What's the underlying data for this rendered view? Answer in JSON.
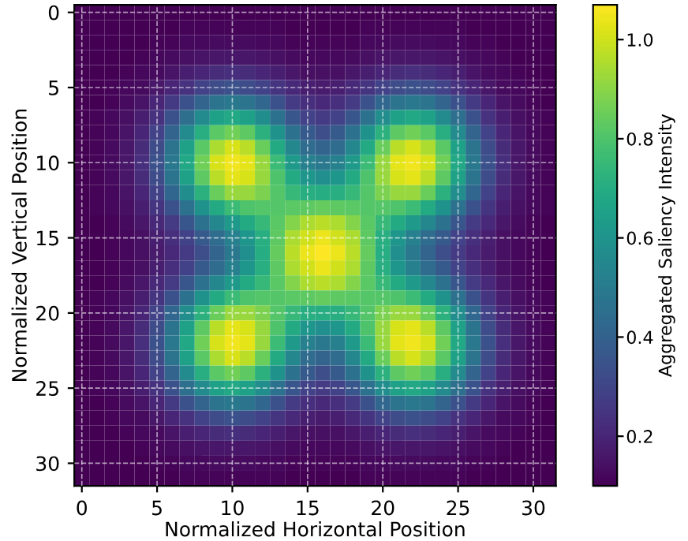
{
  "chart_data": {
    "type": "heatmap",
    "xlabel": "Normalized Horizontal Position",
    "ylabel": "Normalized Vertical Position",
    "clabel": "Aggregated Saliency Intensity",
    "xlim": [
      -0.5,
      31.5
    ],
    "ylim": [
      31.5,
      -0.5
    ],
    "xticks": [
      0,
      5,
      10,
      15,
      20,
      25,
      30
    ],
    "yticks": [
      0,
      5,
      10,
      15,
      20,
      25,
      30
    ],
    "clim": [
      0.1,
      1.07
    ],
    "cticks": [
      0.2,
      0.4,
      0.6,
      0.8,
      {
        "value": 1,
        "label": "1.0"
      }
    ],
    "grid": true,
    "cells": [
      [
        0.1,
        0.1,
        0.1,
        0.1,
        0.1,
        0.1,
        0.1,
        0.1,
        0.1,
        0.1,
        0.1,
        0.1,
        0.1,
        0.1,
        0.1,
        0.1,
        0.1,
        0.1,
        0.1,
        0.1,
        0.1,
        0.1,
        0.1,
        0.1,
        0.1,
        0.1,
        0.1,
        0.1,
        0.1,
        0.1,
        0.1,
        0.1
      ],
      [
        0.1,
        0.1,
        0.1,
        0.1,
        0.1,
        0.1,
        0.1,
        0.11,
        0.11,
        0.11,
        0.11,
        0.11,
        0.11,
        0.11,
        0.1,
        0.1,
        0.1,
        0.1,
        0.1,
        0.11,
        0.11,
        0.11,
        0.11,
        0.11,
        0.11,
        0.11,
        0.1,
        0.1,
        0.1,
        0.1,
        0.1,
        0.1
      ],
      [
        0.1,
        0.1,
        0.1,
        0.1,
        0.1,
        0.11,
        0.11,
        0.12,
        0.12,
        0.13,
        0.13,
        0.13,
        0.12,
        0.12,
        0.11,
        0.11,
        0.11,
        0.11,
        0.11,
        0.12,
        0.12,
        0.13,
        0.13,
        0.13,
        0.12,
        0.12,
        0.11,
        0.11,
        0.1,
        0.1,
        0.1,
        0.1
      ],
      [
        0.1,
        0.1,
        0.1,
        0.1,
        0.11,
        0.12,
        0.13,
        0.14,
        0.15,
        0.16,
        0.16,
        0.16,
        0.15,
        0.14,
        0.13,
        0.12,
        0.12,
        0.12,
        0.13,
        0.14,
        0.15,
        0.16,
        0.16,
        0.16,
        0.15,
        0.14,
        0.13,
        0.12,
        0.11,
        0.1,
        0.1,
        0.1
      ],
      [
        0.1,
        0.1,
        0.1,
        0.11,
        0.12,
        0.13,
        0.15,
        0.18,
        0.2,
        0.22,
        0.23,
        0.22,
        0.2,
        0.18,
        0.16,
        0.14,
        0.14,
        0.14,
        0.16,
        0.18,
        0.2,
        0.22,
        0.23,
        0.22,
        0.2,
        0.18,
        0.15,
        0.13,
        0.12,
        0.11,
        0.1,
        0.1
      ],
      [
        0.1,
        0.1,
        0.11,
        0.12,
        0.13,
        0.16,
        0.2,
        0.24,
        0.29,
        0.32,
        0.34,
        0.32,
        0.29,
        0.25,
        0.21,
        0.18,
        0.17,
        0.18,
        0.21,
        0.25,
        0.29,
        0.32,
        0.34,
        0.32,
        0.29,
        0.24,
        0.2,
        0.16,
        0.13,
        0.12,
        0.11,
        0.1
      ],
      [
        0.1,
        0.1,
        0.11,
        0.13,
        0.15,
        0.2,
        0.26,
        0.34,
        0.41,
        0.47,
        0.49,
        0.47,
        0.42,
        0.34,
        0.27,
        0.23,
        0.21,
        0.23,
        0.27,
        0.34,
        0.42,
        0.47,
        0.49,
        0.47,
        0.41,
        0.34,
        0.26,
        0.2,
        0.15,
        0.13,
        0.11,
        0.1
      ],
      [
        0.1,
        0.11,
        0.12,
        0.14,
        0.18,
        0.24,
        0.34,
        0.45,
        0.56,
        0.65,
        0.68,
        0.65,
        0.57,
        0.46,
        0.36,
        0.29,
        0.27,
        0.29,
        0.36,
        0.46,
        0.57,
        0.65,
        0.68,
        0.65,
        0.56,
        0.45,
        0.34,
        0.24,
        0.18,
        0.14,
        0.12,
        0.11
      ],
      [
        0.1,
        0.11,
        0.12,
        0.15,
        0.2,
        0.29,
        0.41,
        0.56,
        0.71,
        0.82,
        0.86,
        0.83,
        0.72,
        0.59,
        0.46,
        0.37,
        0.33,
        0.37,
        0.46,
        0.59,
        0.72,
        0.83,
        0.86,
        0.82,
        0.71,
        0.56,
        0.41,
        0.29,
        0.2,
        0.15,
        0.12,
        0.11
      ],
      [
        0.1,
        0.11,
        0.13,
        0.16,
        0.22,
        0.32,
        0.47,
        0.65,
        0.82,
        0.95,
        1.01,
        0.97,
        0.85,
        0.69,
        0.55,
        0.44,
        0.41,
        0.44,
        0.55,
        0.69,
        0.85,
        0.97,
        1.01,
        0.95,
        0.82,
        0.65,
        0.47,
        0.32,
        0.22,
        0.16,
        0.13,
        0.11
      ],
      [
        0.1,
        0.11,
        0.13,
        0.16,
        0.23,
        0.34,
        0.49,
        0.68,
        0.86,
        1.01,
        1.05,
        1.03,
        0.92,
        0.76,
        0.62,
        0.52,
        0.49,
        0.52,
        0.62,
        0.76,
        0.92,
        1.03,
        1.05,
        1.01,
        0.86,
        0.68,
        0.49,
        0.34,
        0.23,
        0.16,
        0.13,
        0.11
      ],
      [
        0.1,
        0.11,
        0.13,
        0.16,
        0.22,
        0.32,
        0.47,
        0.65,
        0.83,
        0.97,
        1.03,
        1.01,
        0.92,
        0.8,
        0.69,
        0.61,
        0.58,
        0.61,
        0.69,
        0.8,
        0.92,
        1.01,
        1.03,
        0.97,
        0.83,
        0.65,
        0.47,
        0.32,
        0.22,
        0.16,
        0.13,
        0.11
      ],
      [
        0.1,
        0.11,
        0.12,
        0.15,
        0.2,
        0.29,
        0.42,
        0.57,
        0.72,
        0.85,
        0.92,
        0.92,
        0.88,
        0.81,
        0.75,
        0.71,
        0.7,
        0.71,
        0.75,
        0.81,
        0.88,
        0.92,
        0.92,
        0.85,
        0.72,
        0.57,
        0.42,
        0.29,
        0.2,
        0.15,
        0.12,
        0.11
      ],
      [
        0.1,
        0.11,
        0.12,
        0.14,
        0.18,
        0.25,
        0.34,
        0.46,
        0.59,
        0.69,
        0.76,
        0.8,
        0.81,
        0.81,
        0.82,
        0.83,
        0.84,
        0.83,
        0.82,
        0.81,
        0.81,
        0.8,
        0.76,
        0.69,
        0.59,
        0.46,
        0.34,
        0.25,
        0.18,
        0.14,
        0.12,
        0.11
      ],
      [
        0.1,
        0.1,
        0.11,
        0.13,
        0.16,
        0.21,
        0.27,
        0.36,
        0.46,
        0.55,
        0.62,
        0.69,
        0.75,
        0.82,
        0.89,
        0.95,
        0.97,
        0.95,
        0.89,
        0.82,
        0.75,
        0.69,
        0.62,
        0.55,
        0.46,
        0.36,
        0.27,
        0.21,
        0.16,
        0.13,
        0.11,
        0.1
      ],
      [
        0.1,
        0.1,
        0.11,
        0.12,
        0.14,
        0.18,
        0.23,
        0.29,
        0.37,
        0.44,
        0.52,
        0.61,
        0.71,
        0.83,
        0.95,
        1.0,
        1.04,
        1.0,
        0.95,
        0.83,
        0.71,
        0.61,
        0.52,
        0.44,
        0.37,
        0.29,
        0.23,
        0.18,
        0.14,
        0.12,
        0.11,
        0.1
      ],
      [
        0.1,
        0.1,
        0.11,
        0.12,
        0.14,
        0.17,
        0.21,
        0.27,
        0.33,
        0.41,
        0.49,
        0.58,
        0.7,
        0.84,
        0.97,
        1.04,
        1.07,
        1.04,
        0.97,
        0.84,
        0.7,
        0.58,
        0.49,
        0.41,
        0.33,
        0.27,
        0.21,
        0.17,
        0.14,
        0.12,
        0.11,
        0.1
      ],
      [
        0.1,
        0.1,
        0.11,
        0.12,
        0.14,
        0.18,
        0.23,
        0.29,
        0.37,
        0.44,
        0.52,
        0.61,
        0.71,
        0.83,
        0.95,
        1.0,
        1.04,
        1.0,
        0.95,
        0.83,
        0.71,
        0.61,
        0.52,
        0.44,
        0.37,
        0.29,
        0.23,
        0.18,
        0.14,
        0.12,
        0.11,
        0.1
      ],
      [
        0.1,
        0.1,
        0.11,
        0.13,
        0.16,
        0.21,
        0.27,
        0.36,
        0.46,
        0.55,
        0.62,
        0.69,
        0.75,
        0.82,
        0.89,
        0.95,
        0.97,
        0.95,
        0.89,
        0.82,
        0.75,
        0.69,
        0.62,
        0.55,
        0.46,
        0.36,
        0.27,
        0.21,
        0.16,
        0.13,
        0.11,
        0.1
      ],
      [
        0.1,
        0.11,
        0.12,
        0.14,
        0.18,
        0.25,
        0.34,
        0.46,
        0.59,
        0.69,
        0.76,
        0.8,
        0.81,
        0.81,
        0.82,
        0.83,
        0.84,
        0.83,
        0.82,
        0.81,
        0.81,
        0.8,
        0.76,
        0.69,
        0.59,
        0.46,
        0.34,
        0.25,
        0.18,
        0.14,
        0.12,
        0.11
      ],
      [
        0.1,
        0.11,
        0.12,
        0.15,
        0.2,
        0.29,
        0.42,
        0.57,
        0.72,
        0.85,
        0.92,
        0.92,
        0.88,
        0.81,
        0.75,
        0.71,
        0.7,
        0.71,
        0.75,
        0.81,
        0.88,
        0.92,
        0.92,
        0.85,
        0.72,
        0.57,
        0.42,
        0.29,
        0.2,
        0.15,
        0.12,
        0.11
      ],
      [
        0.1,
        0.11,
        0.13,
        0.16,
        0.22,
        0.32,
        0.47,
        0.65,
        0.83,
        0.97,
        1.03,
        1.01,
        0.92,
        0.8,
        0.69,
        0.61,
        0.58,
        0.61,
        0.69,
        0.8,
        0.92,
        1.01,
        1.03,
        0.97,
        0.83,
        0.65,
        0.47,
        0.32,
        0.22,
        0.16,
        0.13,
        0.11
      ],
      [
        0.1,
        0.11,
        0.13,
        0.16,
        0.23,
        0.34,
        0.49,
        0.68,
        0.86,
        1.01,
        1.05,
        1.03,
        0.92,
        0.76,
        0.62,
        0.52,
        0.49,
        0.52,
        0.62,
        0.76,
        0.92,
        1.03,
        1.05,
        1.01,
        0.86,
        0.68,
        0.49,
        0.34,
        0.23,
        0.16,
        0.13,
        0.11
      ],
      [
        0.1,
        0.11,
        0.13,
        0.16,
        0.22,
        0.32,
        0.47,
        0.65,
        0.82,
        0.95,
        1.01,
        0.97,
        0.85,
        0.69,
        0.55,
        0.44,
        0.41,
        0.44,
        0.55,
        0.69,
        0.85,
        0.97,
        1.01,
        0.95,
        0.82,
        0.65,
        0.47,
        0.32,
        0.22,
        0.16,
        0.13,
        0.11
      ],
      [
        0.1,
        0.11,
        0.12,
        0.15,
        0.2,
        0.29,
        0.41,
        0.56,
        0.71,
        0.82,
        0.86,
        0.83,
        0.72,
        0.59,
        0.46,
        0.37,
        0.33,
        0.37,
        0.46,
        0.59,
        0.72,
        0.83,
        0.86,
        0.82,
        0.71,
        0.56,
        0.41,
        0.29,
        0.2,
        0.15,
        0.12,
        0.11
      ],
      [
        0.1,
        0.11,
        0.12,
        0.14,
        0.18,
        0.24,
        0.34,
        0.45,
        0.56,
        0.65,
        0.68,
        0.65,
        0.57,
        0.46,
        0.36,
        0.29,
        0.27,
        0.29,
        0.36,
        0.46,
        0.57,
        0.65,
        0.68,
        0.65,
        0.56,
        0.45,
        0.34,
        0.24,
        0.18,
        0.14,
        0.12,
        0.11
      ],
      [
        0.1,
        0.1,
        0.11,
        0.13,
        0.15,
        0.2,
        0.26,
        0.34,
        0.41,
        0.47,
        0.49,
        0.47,
        0.42,
        0.34,
        0.27,
        0.23,
        0.21,
        0.23,
        0.27,
        0.34,
        0.42,
        0.47,
        0.49,
        0.47,
        0.41,
        0.34,
        0.26,
        0.2,
        0.15,
        0.13,
        0.11,
        0.1
      ],
      [
        0.1,
        0.1,
        0.11,
        0.12,
        0.13,
        0.16,
        0.2,
        0.24,
        0.29,
        0.32,
        0.34,
        0.32,
        0.29,
        0.25,
        0.21,
        0.18,
        0.17,
        0.18,
        0.21,
        0.25,
        0.29,
        0.32,
        0.34,
        0.32,
        0.29,
        0.24,
        0.2,
        0.16,
        0.13,
        0.12,
        0.11,
        0.1
      ],
      [
        0.1,
        0.1,
        0.1,
        0.11,
        0.12,
        0.13,
        0.15,
        0.18,
        0.2,
        0.22,
        0.23,
        0.22,
        0.2,
        0.18,
        0.16,
        0.14,
        0.14,
        0.14,
        0.16,
        0.18,
        0.2,
        0.22,
        0.23,
        0.22,
        0.2,
        0.18,
        0.15,
        0.13,
        0.12,
        0.11,
        0.1,
        0.1
      ],
      [
        0.1,
        0.1,
        0.1,
        0.1,
        0.11,
        0.12,
        0.13,
        0.14,
        0.15,
        0.16,
        0.16,
        0.16,
        0.15,
        0.14,
        0.13,
        0.12,
        0.12,
        0.12,
        0.13,
        0.14,
        0.15,
        0.16,
        0.16,
        0.16,
        0.15,
        0.14,
        0.13,
        0.12,
        0.11,
        0.1,
        0.1,
        0.1
      ],
      [
        0.1,
        0.1,
        0.1,
        0.1,
        0.1,
        0.11,
        0.11,
        0.12,
        0.12,
        0.13,
        0.13,
        0.13,
        0.12,
        0.12,
        0.11,
        0.11,
        0.11,
        0.11,
        0.11,
        0.12,
        0.12,
        0.13,
        0.13,
        0.13,
        0.12,
        0.12,
        0.11,
        0.11,
        0.1,
        0.1,
        0.1,
        0.1
      ],
      [
        0.1,
        0.1,
        0.1,
        0.1,
        0.1,
        0.1,
        0.1,
        0.11,
        0.11,
        0.11,
        0.11,
        0.11,
        0.11,
        0.11,
        0.1,
        0.1,
        0.1,
        0.1,
        0.1,
        0.11,
        0.11,
        0.11,
        0.11,
        0.11,
        0.11,
        0.11,
        0.1,
        0.1,
        0.1,
        0.1,
        0.1,
        0.1
      ]
    ]
  }
}
